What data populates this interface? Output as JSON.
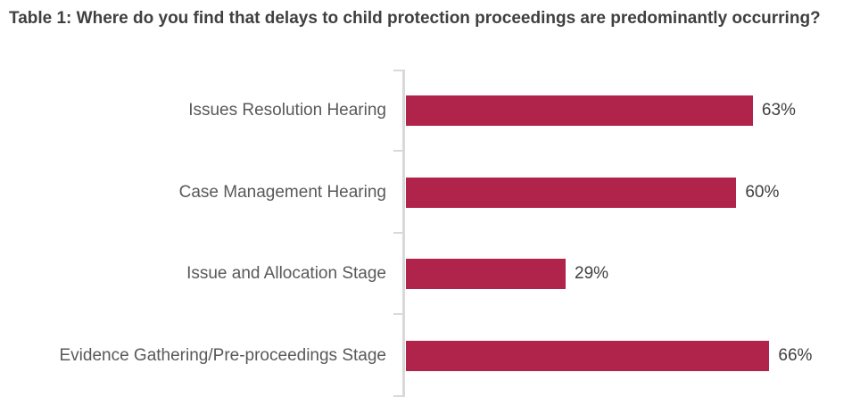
{
  "chart_data": {
    "type": "bar",
    "orientation": "horizontal",
    "title": "Table 1: Where do you find that delays to child protection proceedings are predominantly occurring?",
    "categories": [
      "Issues Resolution Hearing",
      "Case Management Hearing",
      "Issue and Allocation Stage",
      "Evidence Gathering/Pre-proceedings Stage"
    ],
    "values": [
      63,
      60,
      29,
      66
    ],
    "value_labels": [
      "63%",
      "60%",
      "29%",
      "66%"
    ],
    "unit": "percent",
    "xlabel": "",
    "ylabel": "",
    "xlim": [
      0,
      81
    ],
    "grid": false,
    "legend": false
  },
  "colors": {
    "bar": "#B0234A",
    "title_text": "#404040",
    "category_text": "#595959",
    "value_text": "#404040",
    "axis_line": "#D9D9D9",
    "background": "#FFFFFF"
  }
}
